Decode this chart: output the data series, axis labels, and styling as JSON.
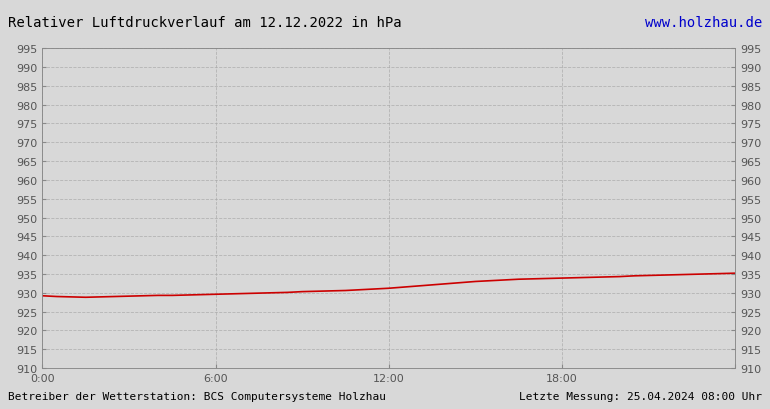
{
  "title": "Relativer Luftdruckverlauf am 12.12.2022 in hPa",
  "url_text": "www.holzhau.de",
  "bottom_left": "Betreiber der Wetterstation: BCS Computersysteme Holzhau",
  "bottom_right": "Letzte Messung: 25.04.2024 08:00 Uhr",
  "x_ticks": [
    0,
    6,
    12,
    18,
    24
  ],
  "x_tick_labels": [
    "0:00",
    "6:00",
    "12:00",
    "18:00",
    ""
  ],
  "ylim": [
    910,
    995
  ],
  "xlim": [
    0,
    24
  ],
  "y_tick_step": 5,
  "background_color": "#d8d8d8",
  "plot_bg_color": "#d8d8d8",
  "line_color": "#cc0000",
  "grid_color": "#aaaaaa",
  "title_color": "#000000",
  "url_color": "#0000cc",
  "footer_color": "#000000",
  "pressure_data_x": [
    0.0,
    0.5,
    1.0,
    1.5,
    2.0,
    2.5,
    3.0,
    3.5,
    4.0,
    4.5,
    5.0,
    5.5,
    6.0,
    6.5,
    7.0,
    7.5,
    8.0,
    8.5,
    9.0,
    9.5,
    10.0,
    10.5,
    11.0,
    11.5,
    12.0,
    12.5,
    13.0,
    13.5,
    14.0,
    14.5,
    15.0,
    15.5,
    16.0,
    16.5,
    17.0,
    17.5,
    18.0,
    18.5,
    19.0,
    19.5,
    20.0,
    20.5,
    21.0,
    21.5,
    22.0,
    22.5,
    23.0,
    23.5,
    24.0
  ],
  "pressure_data_y": [
    929.2,
    929.0,
    928.9,
    928.8,
    928.9,
    929.0,
    929.1,
    929.2,
    929.3,
    929.3,
    929.4,
    929.5,
    929.6,
    929.7,
    929.8,
    929.9,
    930.0,
    930.1,
    930.3,
    930.4,
    930.5,
    930.6,
    930.8,
    931.0,
    931.2,
    931.5,
    931.8,
    932.1,
    932.4,
    932.7,
    933.0,
    933.2,
    933.4,
    933.6,
    933.7,
    933.8,
    933.9,
    934.0,
    934.1,
    934.2,
    934.3,
    934.5,
    934.6,
    934.7,
    934.8,
    934.9,
    935.0,
    935.1,
    935.2
  ]
}
